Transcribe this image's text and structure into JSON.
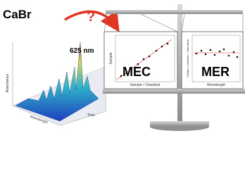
{
  "header": {
    "title": "CaBr",
    "question": "?"
  },
  "spectrum": {
    "peak_label": "625 nm",
    "y_axis": "Absorbance",
    "x_axis": "Wavelength",
    "z_axis": "Time"
  },
  "panels": [
    {
      "title": "MEC",
      "y_axis": "Sample",
      "x_axis": "Sample + Standard"
    },
    {
      "title": "MER",
      "y_axis": "Sample / (Sample + Standard)",
      "x_axis": "Wavelength"
    }
  ]
}
